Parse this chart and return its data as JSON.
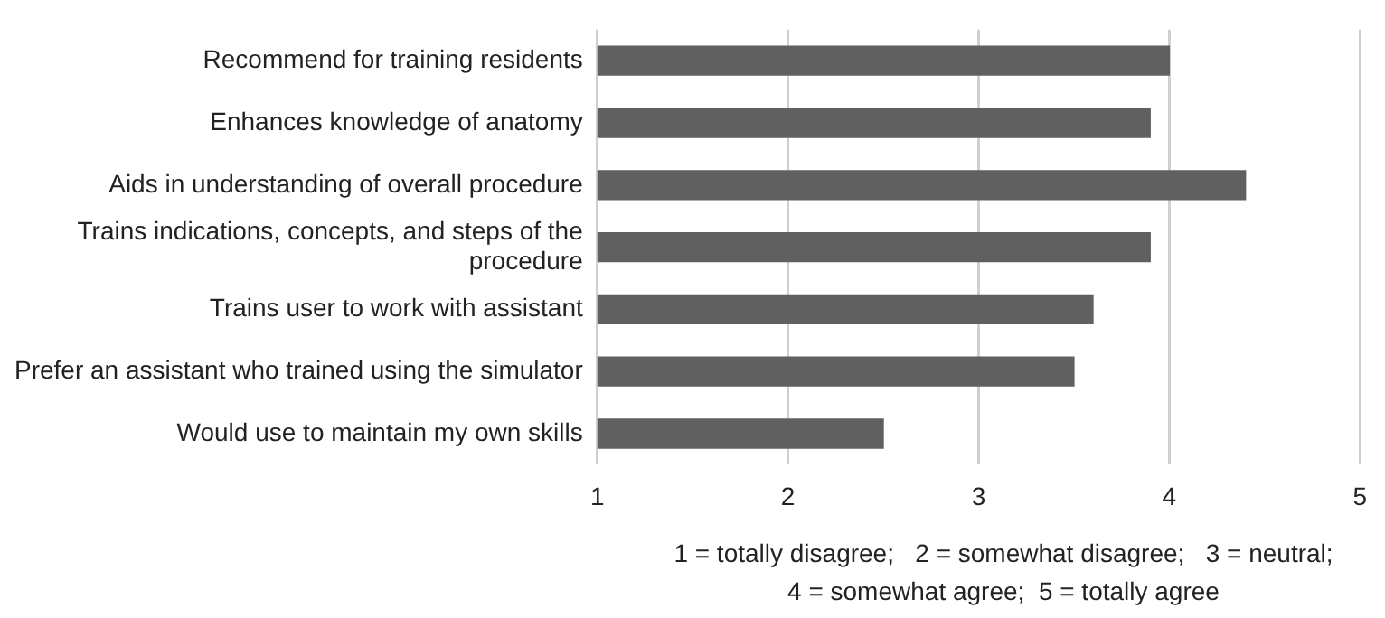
{
  "chart_data": {
    "type": "bar",
    "orientation": "horizontal",
    "categories": [
      "Recommend for training residents",
      "Enhances knowledge of anatomy",
      "Aids in understanding of overall procedure",
      "Trains indications, concepts, and steps of the procedure",
      "Trains user to work with assistant",
      "Prefer an assistant who trained using the simulator",
      "Would use to maintain my own skills"
    ],
    "values": [
      4.0,
      3.9,
      4.4,
      3.9,
      3.6,
      3.5,
      2.5
    ],
    "color": "#5f605f",
    "xlim": [
      1,
      5
    ],
    "xticks": [
      1,
      2,
      3,
      4,
      5
    ],
    "grid": "x",
    "legend": false,
    "annotations": [
      "1 = totally disagree;   2 = somewhat disagree;   3 = neutral;   4 = somewhat agree;  5 = totally agree"
    ]
  }
}
